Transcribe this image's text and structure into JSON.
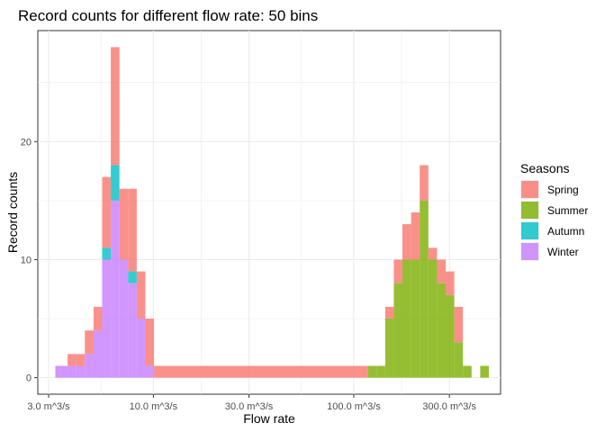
{
  "chart_data": {
    "type": "bar",
    "title": "Record counts for different flow rate: 50 bins",
    "xlabel": "Flow rate",
    "ylabel": "Record counts",
    "x_scale": "log10",
    "x_unit": "m^3/s",
    "xlim": [
      2.65,
      540
    ],
    "ylim": [
      -1.4,
      29.4
    ],
    "x_ticks": [
      {
        "value": 3,
        "label": "3.0 m^3/s"
      },
      {
        "value": 10,
        "label": "10.0 m^3/s"
      },
      {
        "value": 30,
        "label": "30.0 m^3/s"
      },
      {
        "value": 100,
        "label": "100.0 m^3/s"
      },
      {
        "value": 300,
        "label": "300.0 m^3/s"
      }
    ],
    "y_ticks": [
      0,
      10,
      20
    ],
    "grid": true,
    "stacked": true,
    "legend": {
      "title": "Seasons",
      "position": "right"
    },
    "bin_edges": [
      3.24,
      3.73,
      4.12,
      4.55,
      5.03,
      5.55,
      6.13,
      6.77,
      7.48,
      8.26,
      9.12,
      10.07,
      117.6,
      129.9,
      143.5,
      158.4,
      174.9,
      193.2,
      213.3,
      235.6,
      260.2,
      287.3,
      317.3,
      350.4,
      387.0,
      427.3,
      471.9
    ],
    "series": [
      {
        "name": "Winter",
        "color": "#C77CFF",
        "values": [
          1,
          1,
          1,
          2,
          4,
          10,
          15,
          10,
          8,
          5,
          1,
          0,
          0,
          0,
          0,
          0,
          0,
          0,
          0,
          0,
          0,
          0,
          0,
          0,
          0,
          0
        ]
      },
      {
        "name": "Autumn",
        "color": "#00BFC4",
        "values": [
          0,
          0,
          0,
          0,
          0,
          1,
          3,
          0,
          1,
          0,
          0,
          0,
          0,
          0,
          0,
          0,
          0,
          0,
          0,
          0,
          0,
          0,
          0,
          0,
          0,
          0
        ]
      },
      {
        "name": "Summer",
        "color": "#7CAE00",
        "values": [
          0,
          0,
          0,
          0,
          0,
          0,
          0,
          0,
          0,
          0,
          0,
          0,
          1,
          1,
          5,
          8,
          10,
          10,
          15,
          10,
          8,
          7,
          3,
          1,
          0,
          1
        ]
      },
      {
        "name": "Spring",
        "color": "#F8766D",
        "values": [
          0,
          1,
          1,
          2,
          2,
          6,
          10,
          6,
          7,
          4,
          4,
          1,
          0,
          0,
          1,
          2,
          3,
          4,
          3,
          1,
          2,
          2,
          3,
          0,
          0,
          0
        ]
      }
    ]
  },
  "legend_order": [
    "Spring",
    "Summer",
    "Autumn",
    "Winter"
  ]
}
